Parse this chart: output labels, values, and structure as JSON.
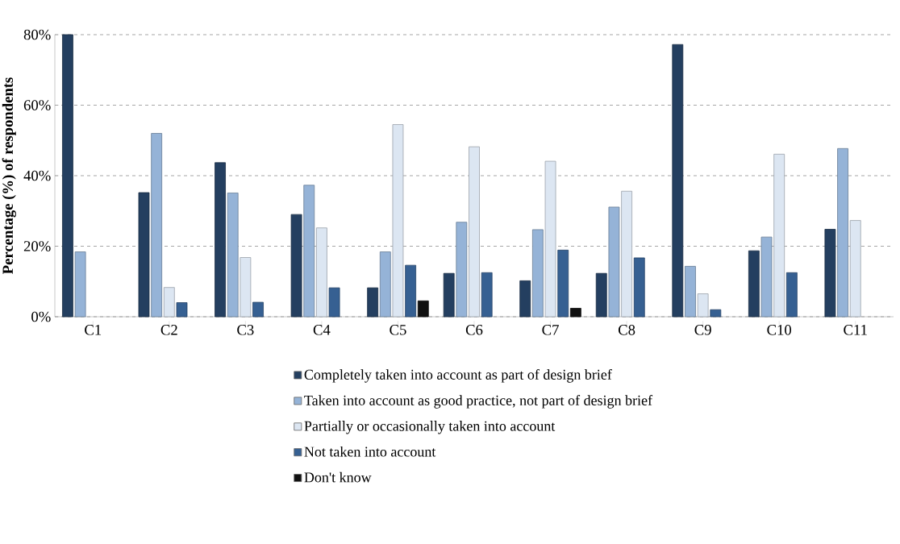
{
  "chart_data": {
    "type": "bar",
    "ylabel": "Percentage (%) of respondents",
    "categories": [
      "C1",
      "C2",
      "C3",
      "C4",
      "C5",
      "C6",
      "C7",
      "C8",
      "C9",
      "C10",
      "C11"
    ],
    "series": [
      {
        "name": "Completely taken into account as part of design brief",
        "color": "#243f60",
        "values": [
          80,
          35.2,
          43.7,
          29.0,
          8.2,
          12.3,
          10.2,
          12.3,
          77.2,
          18.7,
          24.8
        ]
      },
      {
        "name": "Taken into account as good practice, not part of design brief",
        "color": "#95b3d7",
        "values": [
          18.4,
          52.0,
          35.1,
          37.3,
          18.4,
          26.8,
          24.7,
          31.1,
          14.3,
          22.6,
          47.7
        ]
      },
      {
        "name": "Partially or occasionally taken into account",
        "color": "#dce6f2",
        "values": [
          null,
          8.3,
          16.8,
          25.2,
          54.5,
          48.2,
          44.1,
          35.6,
          6.5,
          46.1,
          27.3
        ]
      },
      {
        "name": "Not taken into account",
        "color": "#366092",
        "values": [
          null,
          4.0,
          4.1,
          8.2,
          14.6,
          12.5,
          18.9,
          16.7,
          2.0,
          12.5,
          null
        ]
      },
      {
        "name": "Don't know",
        "color": "#111111",
        "values": [
          null,
          null,
          null,
          null,
          4.5,
          null,
          2.4,
          null,
          null,
          null,
          null
        ]
      }
    ],
    "ylim": [
      0,
      80
    ],
    "yticks": [
      {
        "value": 0,
        "label": "0%"
      },
      {
        "value": 20,
        "label": "20%"
      },
      {
        "value": 40,
        "label": "40%"
      },
      {
        "value": 60,
        "label": "60%"
      },
      {
        "value": 80,
        "label": "80%"
      }
    ],
    "grid": "y",
    "legend": "bottom"
  }
}
